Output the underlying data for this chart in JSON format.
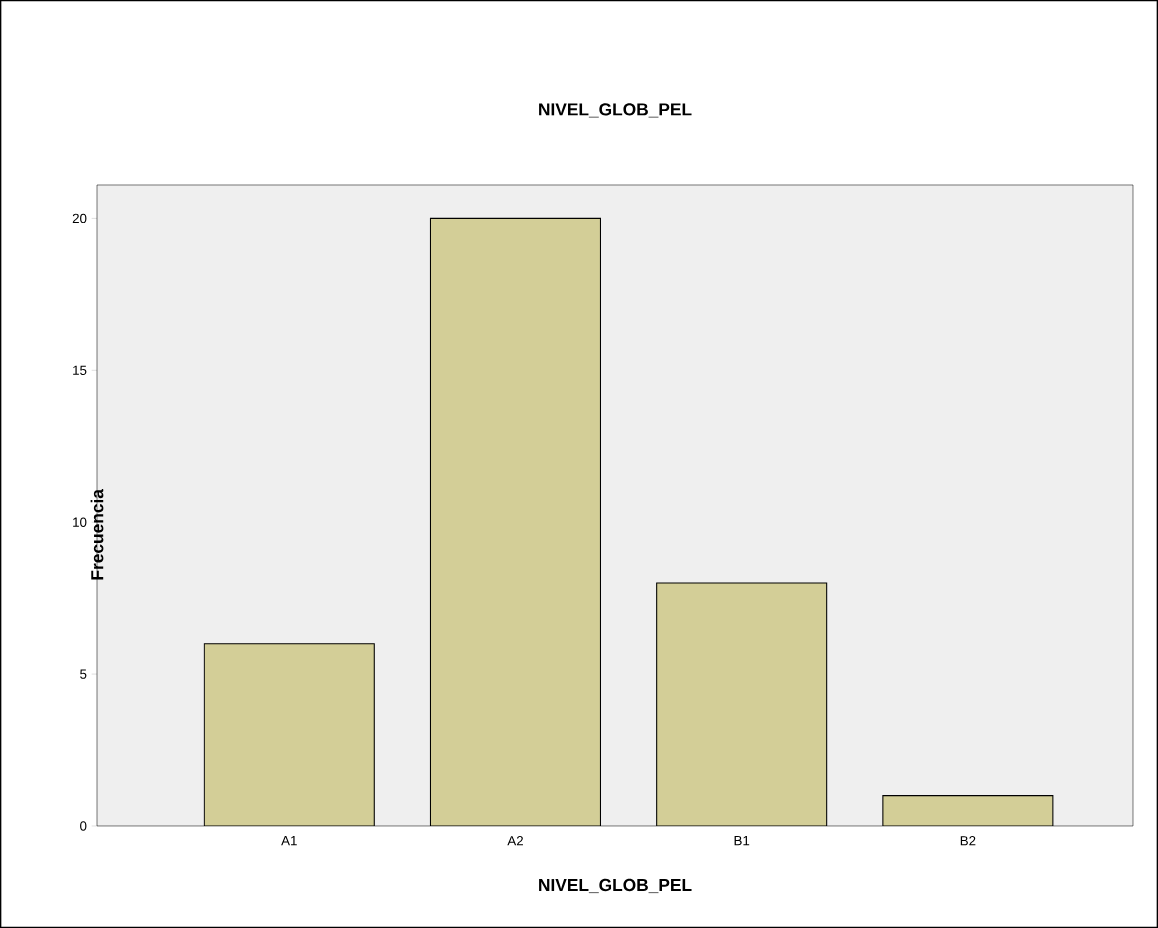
{
  "chart_data": {
    "type": "bar",
    "title": "NIVEL_GLOB_PEL",
    "xlabel": "NIVEL_GLOB_PEL",
    "ylabel": "Frecuencia",
    "categories": [
      "A1",
      "A2",
      "B1",
      "B2"
    ],
    "values": [
      6,
      20,
      8,
      1
    ],
    "color": "#d3ce97",
    "ylim": [
      0,
      21.1
    ],
    "yticks": [
      0,
      5,
      10,
      15,
      20
    ]
  }
}
